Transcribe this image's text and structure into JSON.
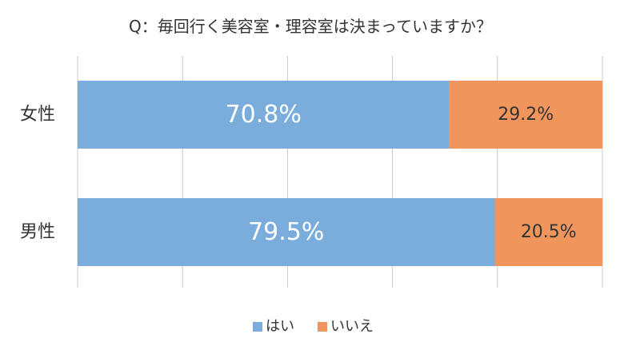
{
  "chart_data": {
    "type": "bar",
    "orientation": "horizontal",
    "stacked": true,
    "percent_stacked": true,
    "title": "Q：毎回行く美容室・理容室は決まっていますか？",
    "categories": [
      "女性",
      "男性"
    ],
    "series": [
      {
        "name": "はい",
        "values": [
          70.8,
          79.5
        ],
        "labels": [
          "70.8%",
          "79.5%"
        ],
        "color": "#7aaddc"
      },
      {
        "name": "いいえ",
        "values": [
          29.2,
          20.5
        ],
        "labels": [
          "29.2%",
          "20.5%"
        ],
        "color": "#f0965c"
      }
    ],
    "xlim": [
      0,
      100
    ],
    "x_gridlines": [
      0,
      20,
      40,
      60,
      80,
      100
    ],
    "grid": true,
    "legend_position": "bottom",
    "label_colors": {
      "はい": "#ffffff",
      "いいえ": "#333333"
    },
    "gridline_color": "#c8c8c8",
    "text_color": "#333333"
  }
}
